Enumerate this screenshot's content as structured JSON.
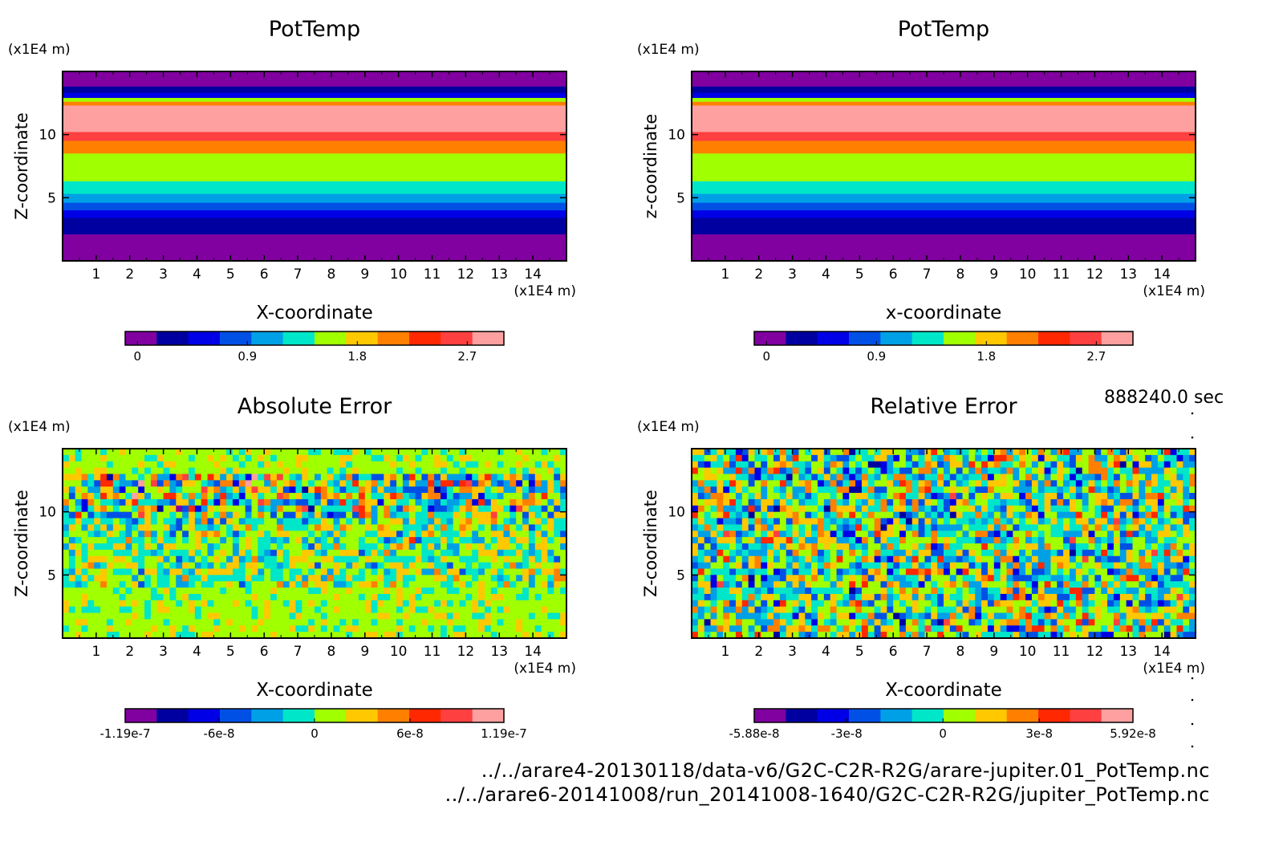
{
  "time_label": "888240.0 sec",
  "footer": {
    "file1": "../../arare4-20130118/data-v6/G2C-C2R-R2G/arare-jupiter.01_PotTemp.nc",
    "file2": "../../arare6-20141008/run_20141008-1640/G2C-C2R-R2G/jupiter_PotTemp.nc"
  },
  "chart_data": [
    {
      "type": "heatmap",
      "title": "PotTemp",
      "xlabel": "X-coordinate",
      "ylabel": "Z-coordinate",
      "x_unit": "(x1E4 m)",
      "y_unit": "(x1E4 m)",
      "xlim": [
        0,
        15
      ],
      "ylim": [
        0,
        15
      ],
      "x_ticks": [
        "1",
        "2",
        "3",
        "4",
        "5",
        "6",
        "7",
        "8",
        "9",
        "10",
        "11",
        "12",
        "13",
        "14"
      ],
      "y_ticks": [
        "5",
        "10"
      ],
      "field": "layered",
      "colorbar": {
        "range": [
          -0.1,
          3.0
        ],
        "tick_values": [
          0,
          0.9,
          1.8,
          2.7
        ],
        "tick_labels": [
          "0",
          "0.9",
          "1.8",
          "2.7"
        ],
        "colors": [
          "#8000a0",
          "#0000a0",
          "#0000e6",
          "#0050e6",
          "#00a0e6",
          "#00e6c8",
          "#a0ff00",
          "#ffc800",
          "#ff8000",
          "#ff2800",
          "#ff4040",
          "#ffa0a0"
        ]
      },
      "layers_top_down": [
        {
          "z_top": 15.0,
          "z_bottom": 13.8,
          "value": 0.0
        },
        {
          "z_top": 13.8,
          "z_bottom": 13.3,
          "value": 0.2
        },
        {
          "z_top": 13.3,
          "z_bottom": 12.9,
          "value": 0.6
        },
        {
          "z_top": 12.9,
          "z_bottom": 12.6,
          "value": 1.5
        },
        {
          "z_top": 12.6,
          "z_bottom": 12.3,
          "value": 2.1
        },
        {
          "z_top": 12.3,
          "z_bottom": 10.2,
          "value": 2.9
        },
        {
          "z_top": 10.2,
          "z_bottom": 9.5,
          "value": 2.6
        },
        {
          "z_top": 9.5,
          "z_bottom": 8.5,
          "value": 2.0
        },
        {
          "z_top": 8.5,
          "z_bottom": 6.3,
          "value": 1.7
        },
        {
          "z_top": 6.3,
          "z_bottom": 5.3,
          "value": 1.3
        },
        {
          "z_top": 5.3,
          "z_bottom": 4.6,
          "value": 1.0
        },
        {
          "z_top": 4.6,
          "z_bottom": 4.0,
          "value": 0.8
        },
        {
          "z_top": 4.0,
          "z_bottom": 3.4,
          "value": 0.6
        },
        {
          "z_top": 3.4,
          "z_bottom": 2.1,
          "value": 0.3
        },
        {
          "z_top": 2.1,
          "z_bottom": 0.0,
          "value": 0.0
        }
      ]
    },
    {
      "type": "heatmap",
      "title": "PotTemp",
      "xlabel": "x-coordinate",
      "ylabel": "z-coordinate",
      "x_unit": "(x1E4 m)",
      "y_unit": "(x1E4 m)",
      "xlim": [
        0,
        15
      ],
      "ylim": [
        0,
        15
      ],
      "x_ticks": [
        "1",
        "2",
        "3",
        "4",
        "5",
        "6",
        "7",
        "8",
        "9",
        "10",
        "11",
        "12",
        "13",
        "14"
      ],
      "y_ticks": [
        "5",
        "10"
      ],
      "field": "layered",
      "colorbar": {
        "range": [
          -0.1,
          3.0
        ],
        "tick_values": [
          0,
          0.9,
          1.8,
          2.7
        ],
        "tick_labels": [
          "0",
          "0.9",
          "1.8",
          "2.7"
        ],
        "colors": [
          "#8000a0",
          "#0000a0",
          "#0000e6",
          "#0050e6",
          "#00a0e6",
          "#00e6c8",
          "#a0ff00",
          "#ffc800",
          "#ff8000",
          "#ff2800",
          "#ff4040",
          "#ffa0a0"
        ]
      },
      "layers_top_down": [
        {
          "z_top": 15.0,
          "z_bottom": 13.8,
          "value": 0.0
        },
        {
          "z_top": 13.8,
          "z_bottom": 13.3,
          "value": 0.2
        },
        {
          "z_top": 13.3,
          "z_bottom": 12.9,
          "value": 0.6
        },
        {
          "z_top": 12.9,
          "z_bottom": 12.6,
          "value": 1.5
        },
        {
          "z_top": 12.6,
          "z_bottom": 12.3,
          "value": 2.1
        },
        {
          "z_top": 12.3,
          "z_bottom": 10.2,
          "value": 2.9
        },
        {
          "z_top": 10.2,
          "z_bottom": 9.5,
          "value": 2.6
        },
        {
          "z_top": 9.5,
          "z_bottom": 8.5,
          "value": 2.0
        },
        {
          "z_top": 8.5,
          "z_bottom": 6.3,
          "value": 1.7
        },
        {
          "z_top": 6.3,
          "z_bottom": 5.3,
          "value": 1.3
        },
        {
          "z_top": 5.3,
          "z_bottom": 4.6,
          "value": 1.0
        },
        {
          "z_top": 4.6,
          "z_bottom": 4.0,
          "value": 0.8
        },
        {
          "z_top": 4.0,
          "z_bottom": 3.4,
          "value": 0.6
        },
        {
          "z_top": 3.4,
          "z_bottom": 2.1,
          "value": 0.3
        },
        {
          "z_top": 2.1,
          "z_bottom": 0.0,
          "value": 0.0
        }
      ]
    },
    {
      "type": "heatmap",
      "title": "Absolute Error",
      "xlabel": "X-coordinate",
      "ylabel": "Z-coordinate",
      "x_unit": "(x1E4 m)",
      "y_unit": "(x1E4 m)",
      "xlim": [
        0,
        15
      ],
      "ylim": [
        0,
        15
      ],
      "x_ticks": [
        "1",
        "2",
        "3",
        "4",
        "5",
        "6",
        "7",
        "8",
        "9",
        "10",
        "11",
        "12",
        "13",
        "14"
      ],
      "y_ticks": [
        "5",
        "10"
      ],
      "field": "noise",
      "noise_profile": "absolute",
      "colorbar": {
        "range": [
          -1.19e-07,
          1.19e-07
        ],
        "tick_values": [
          -1.19e-07,
          -6e-08,
          0,
          6e-08,
          1.19e-07
        ],
        "tick_labels": [
          "-1.19e-7",
          "-6e-8",
          "0",
          "6e-8",
          "1.19e-7"
        ],
        "colors": [
          "#8000a0",
          "#0000a0",
          "#0000e6",
          "#0050e6",
          "#00a0e6",
          "#00e6c8",
          "#a0ff00",
          "#ffc800",
          "#ff8000",
          "#ff2800",
          "#ff4040",
          "#ffa0a0"
        ]
      }
    },
    {
      "type": "heatmap",
      "title": "Relative Error",
      "xlabel": "X-coordinate",
      "ylabel": "Z-coordinate",
      "x_unit": "(x1E4 m)",
      "y_unit": "(x1E4 m)",
      "xlim": [
        0,
        15
      ],
      "ylim": [
        0,
        15
      ],
      "x_ticks": [
        "1",
        "2",
        "3",
        "4",
        "5",
        "6",
        "7",
        "8",
        "9",
        "10",
        "11",
        "12",
        "13",
        "14"
      ],
      "y_ticks": [
        "5",
        "10"
      ],
      "field": "noise",
      "noise_profile": "relative",
      "colorbar": {
        "range": [
          -5.88e-08,
          5.92e-08
        ],
        "tick_values": [
          -5.88e-08,
          -3e-08,
          0,
          3e-08,
          5.92e-08
        ],
        "tick_labels": [
          "-5.88e-8",
          "-3e-8",
          "0",
          "3e-8",
          "5.92e-8"
        ],
        "colors": [
          "#8000a0",
          "#0000a0",
          "#0000e6",
          "#0050e6",
          "#00a0e6",
          "#00e6c8",
          "#a0ff00",
          "#ffc800",
          "#ff8000",
          "#ff2800",
          "#ff4040",
          "#ffa0a0"
        ]
      }
    }
  ]
}
